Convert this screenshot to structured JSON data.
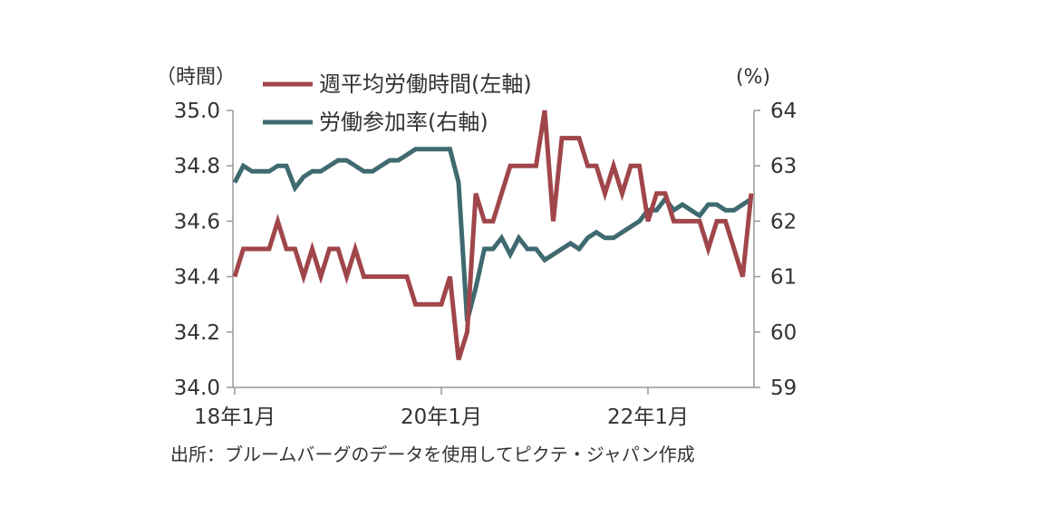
{
  "chart_data": {
    "type": "line",
    "left_axis_unit": "（時間）",
    "right_axis_unit": "(%)",
    "y_left": {
      "min": 34.0,
      "max": 35.0,
      "ticks": [
        "34.0",
        "34.2",
        "34.4",
        "34.6",
        "34.8",
        "35.0"
      ]
    },
    "y_right": {
      "min": 59,
      "max": 64,
      "ticks": [
        "59",
        "60",
        "61",
        "62",
        "63",
        "64"
      ]
    },
    "x_tick_labels": [
      "18年1月",
      "20年1月",
      "22年1月"
    ],
    "x_tick_index": [
      0,
      24,
      48
    ],
    "grid": false,
    "legend_placement": "top",
    "series": [
      {
        "name": "週平均労働時間(左軸)",
        "axis": "left",
        "color": "#a0464b",
        "values": [
          34.4,
          34.5,
          34.5,
          34.5,
          34.5,
          34.6,
          34.5,
          34.5,
          34.4,
          34.5,
          34.4,
          34.5,
          34.5,
          34.4,
          34.5,
          34.4,
          34.4,
          34.4,
          34.4,
          34.4,
          34.4,
          34.3,
          34.3,
          34.3,
          34.3,
          34.4,
          34.1,
          34.2,
          34.7,
          34.6,
          34.6,
          34.7,
          34.8,
          34.8,
          34.8,
          34.8,
          35.0,
          34.6,
          34.9,
          34.9,
          34.9,
          34.8,
          34.8,
          34.7,
          34.8,
          34.7,
          34.8,
          34.8,
          34.6,
          34.7,
          34.7,
          34.6,
          34.6,
          34.6,
          34.6,
          34.5,
          34.6,
          34.6,
          34.5,
          34.4,
          34.7
        ]
      },
      {
        "name": "労働参加率(右軸)",
        "axis": "right",
        "color": "#3e6a70",
        "values": [
          62.7,
          63.0,
          62.9,
          62.9,
          62.9,
          63.0,
          63.0,
          62.6,
          62.8,
          62.9,
          62.9,
          63.0,
          63.1,
          63.1,
          63.0,
          62.9,
          62.9,
          63.0,
          63.1,
          63.1,
          63.2,
          63.3,
          63.3,
          63.3,
          63.3,
          63.3,
          62.7,
          60.2,
          60.8,
          61.5,
          61.5,
          61.7,
          61.4,
          61.7,
          61.5,
          61.5,
          61.3,
          61.4,
          61.5,
          61.6,
          61.5,
          61.7,
          61.8,
          61.7,
          61.7,
          61.8,
          61.9,
          62.0,
          62.2,
          62.2,
          62.4,
          62.2,
          62.3,
          62.2,
          62.1,
          62.3,
          62.3,
          62.2,
          62.2,
          62.3,
          62.4
        ]
      }
    ]
  },
  "source": "出所：ブルームバーグのデータを使用してピクテ・ジャパン作成"
}
